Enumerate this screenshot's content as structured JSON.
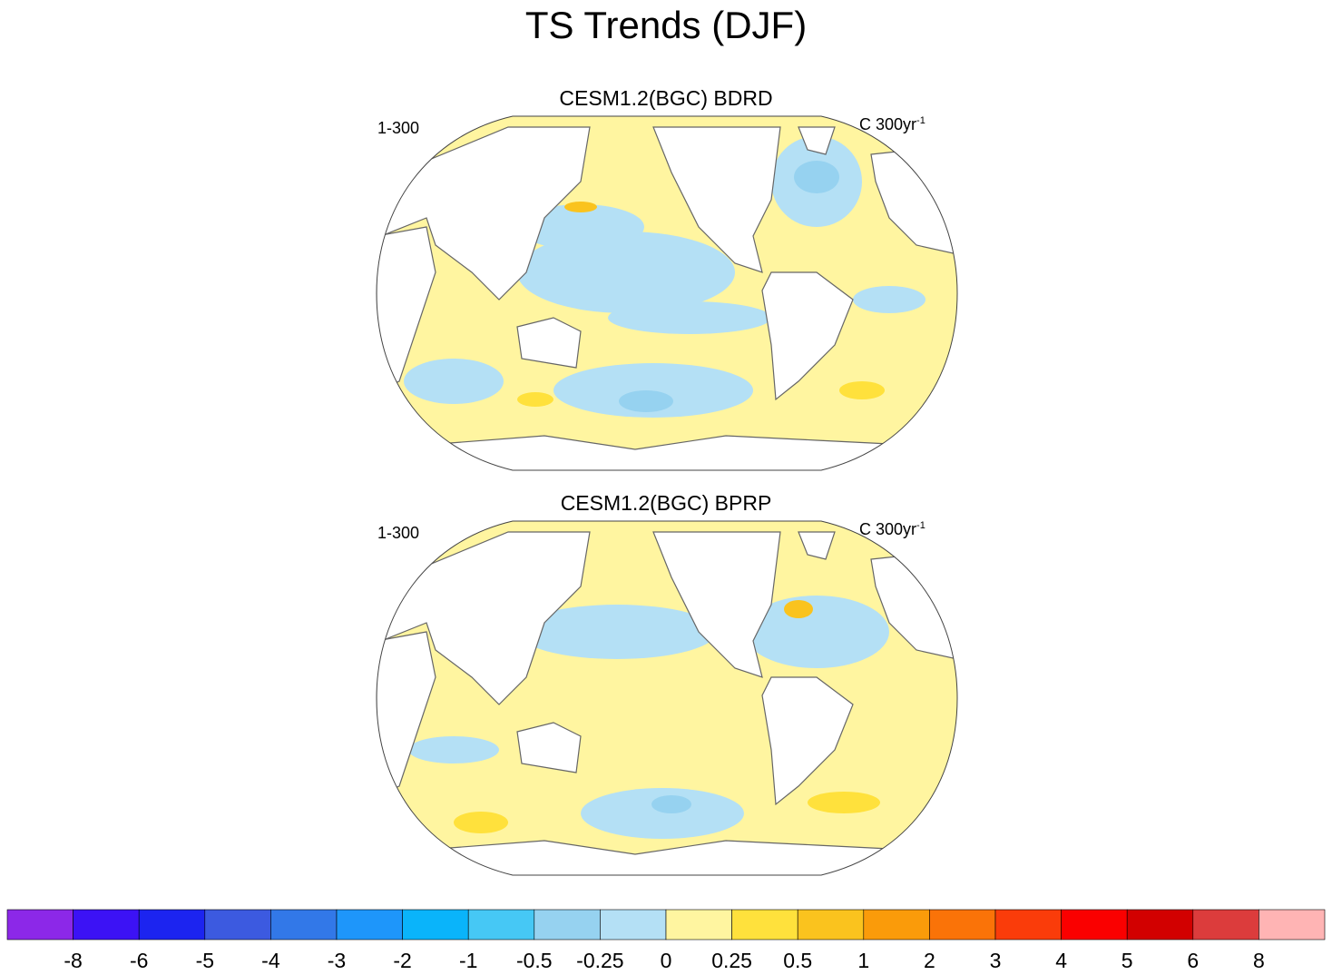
{
  "title": "TS Trends (DJF)",
  "panels": [
    {
      "title": "CESM1.2(BGC) BDRD",
      "left_label": "1-300",
      "units": "C 300yr",
      "units_exponent": "-1"
    },
    {
      "title": "CESM1.2(BGC) BPRP",
      "left_label": "1-300",
      "units": "C 300yr",
      "units_exponent": "-1"
    }
  ],
  "colorbar": {
    "levels": [
      -8,
      -6,
      -5,
      -4,
      -3,
      -2,
      -1,
      -0.5,
      -0.25,
      0,
      0.25,
      0.5,
      1,
      2,
      3,
      4,
      5,
      6,
      8
    ],
    "colors": [
      "#8c28e8",
      "#3c12f5",
      "#1c24f0",
      "#3c5ae0",
      "#3278e8",
      "#1e96fa",
      "#0ab4fa",
      "#46c8f5",
      "#96d2f0",
      "#b4e0f5",
      "#fff5a0",
      "#ffe13c",
      "#fac31e",
      "#fa9b0a",
      "#fa7308",
      "#fa3c0a",
      "#fa0000",
      "#d20000",
      "#dc3c3c",
      "#ffb4b4"
    ]
  }
}
